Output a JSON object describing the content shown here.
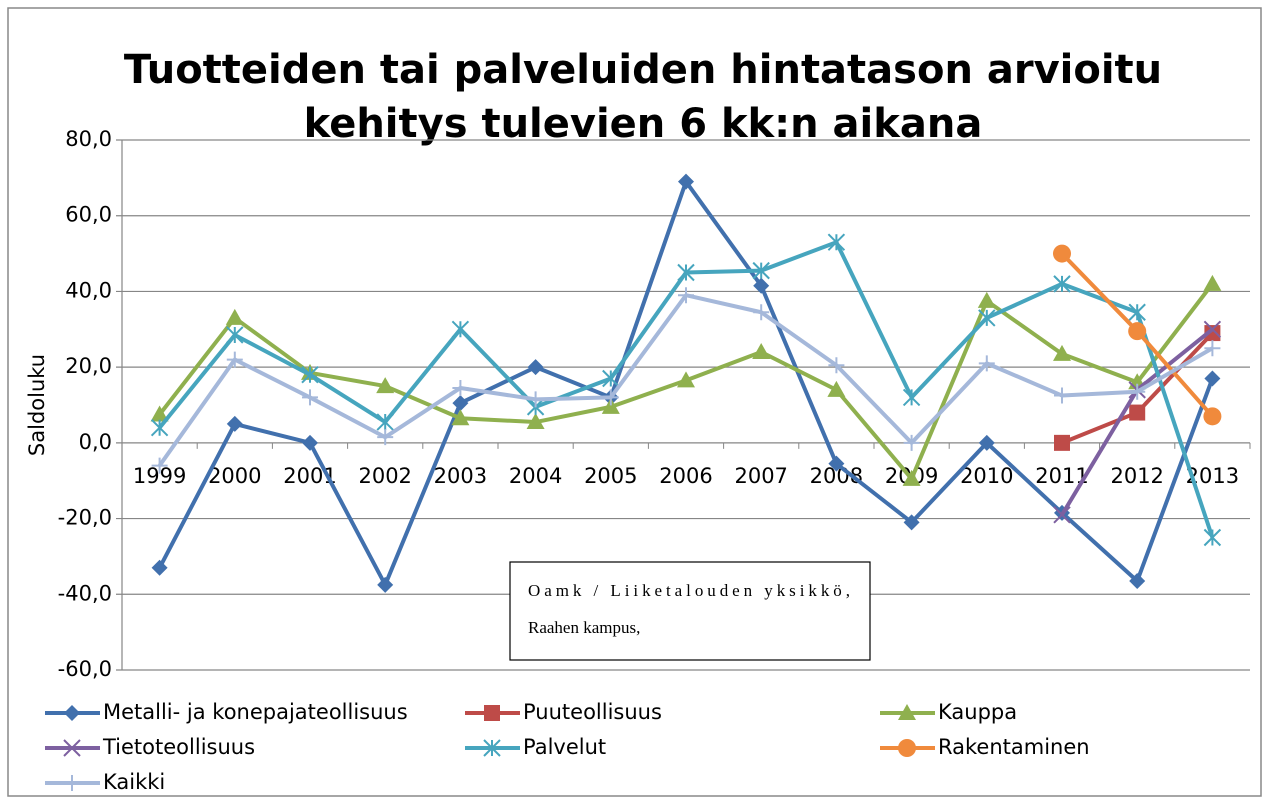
{
  "chart_data": {
    "type": "line",
    "title": [
      "Tuotteiden tai palveluiden hintatason arvioitu",
      "kehitys tulevien 6 kk:n aikana"
    ],
    "y_label": "Saldoluku",
    "annotation": [
      "Oamk / Liiketalouden yksikkö,",
      "Raahen kampus,"
    ],
    "categories": [
      "1999",
      "2000",
      "2001",
      "2002",
      "2003",
      "2004",
      "2005",
      "2006",
      "2007",
      "2008",
      "2009",
      "2010",
      "2011",
      "2012",
      "2013"
    ],
    "ylim": [
      -60,
      80
    ],
    "yticks": [
      {
        "value": -60,
        "label": "-60,0"
      },
      {
        "value": -40,
        "label": "-40,0"
      },
      {
        "value": -20,
        "label": "-20,0"
      },
      {
        "value": 0,
        "label": "0,0"
      },
      {
        "value": 20,
        "label": "20,0"
      },
      {
        "value": 40,
        "label": "40,0"
      },
      {
        "value": 60,
        "label": "60,0"
      },
      {
        "value": 80,
        "label": "80,0"
      }
    ],
    "grid": true,
    "legend": "bottom",
    "series": [
      {
        "name": "Metalli- ja konepajateollisuus",
        "color": "#4170ad",
        "marker": "diamond",
        "values": [
          -33,
          5,
          0,
          -37.5,
          10.5,
          20,
          12,
          69,
          41.5,
          -5.5,
          -21,
          0,
          -18.5,
          -36.5,
          17
        ]
      },
      {
        "name": "Puuteollisuus",
        "color": "#be4b48",
        "marker": "square",
        "values": [
          null,
          null,
          null,
          null,
          null,
          null,
          null,
          null,
          null,
          null,
          null,
          null,
          0,
          8,
          29
        ]
      },
      {
        "name": "Kauppa",
        "color": "#8fb04e",
        "marker": "triangle",
        "values": [
          7.5,
          33,
          18.5,
          15,
          6.5,
          5.5,
          9.5,
          16.5,
          24,
          14,
          -9.5,
          37.5,
          23.5,
          16,
          42
        ]
      },
      {
        "name": "Tietoteollisuus",
        "color": "#7d60a0",
        "marker": "x",
        "values": [
          null,
          null,
          null,
          null,
          null,
          null,
          null,
          null,
          null,
          null,
          null,
          null,
          -19,
          14,
          30
        ]
      },
      {
        "name": "Palvelut",
        "color": "#46a5be",
        "marker": "asterisk",
        "values": [
          4,
          28.5,
          18,
          5.5,
          30,
          9.5,
          17,
          45,
          45.5,
          53,
          12,
          33,
          42,
          34.5,
          -25
        ]
      },
      {
        "name": "Rakentaminen",
        "color": "#f08a3c",
        "marker": "circle",
        "values": [
          null,
          null,
          null,
          null,
          null,
          null,
          null,
          null,
          null,
          null,
          null,
          null,
          50,
          29.5,
          7
        ]
      },
      {
        "name": "Kaikki",
        "color": "#a5b8da",
        "marker": "plus",
        "values": [
          -6,
          22,
          12,
          1.5,
          14.5,
          11.5,
          12,
          39,
          34.5,
          20.5,
          0,
          21,
          12.5,
          13.5,
          25
        ]
      }
    ]
  }
}
